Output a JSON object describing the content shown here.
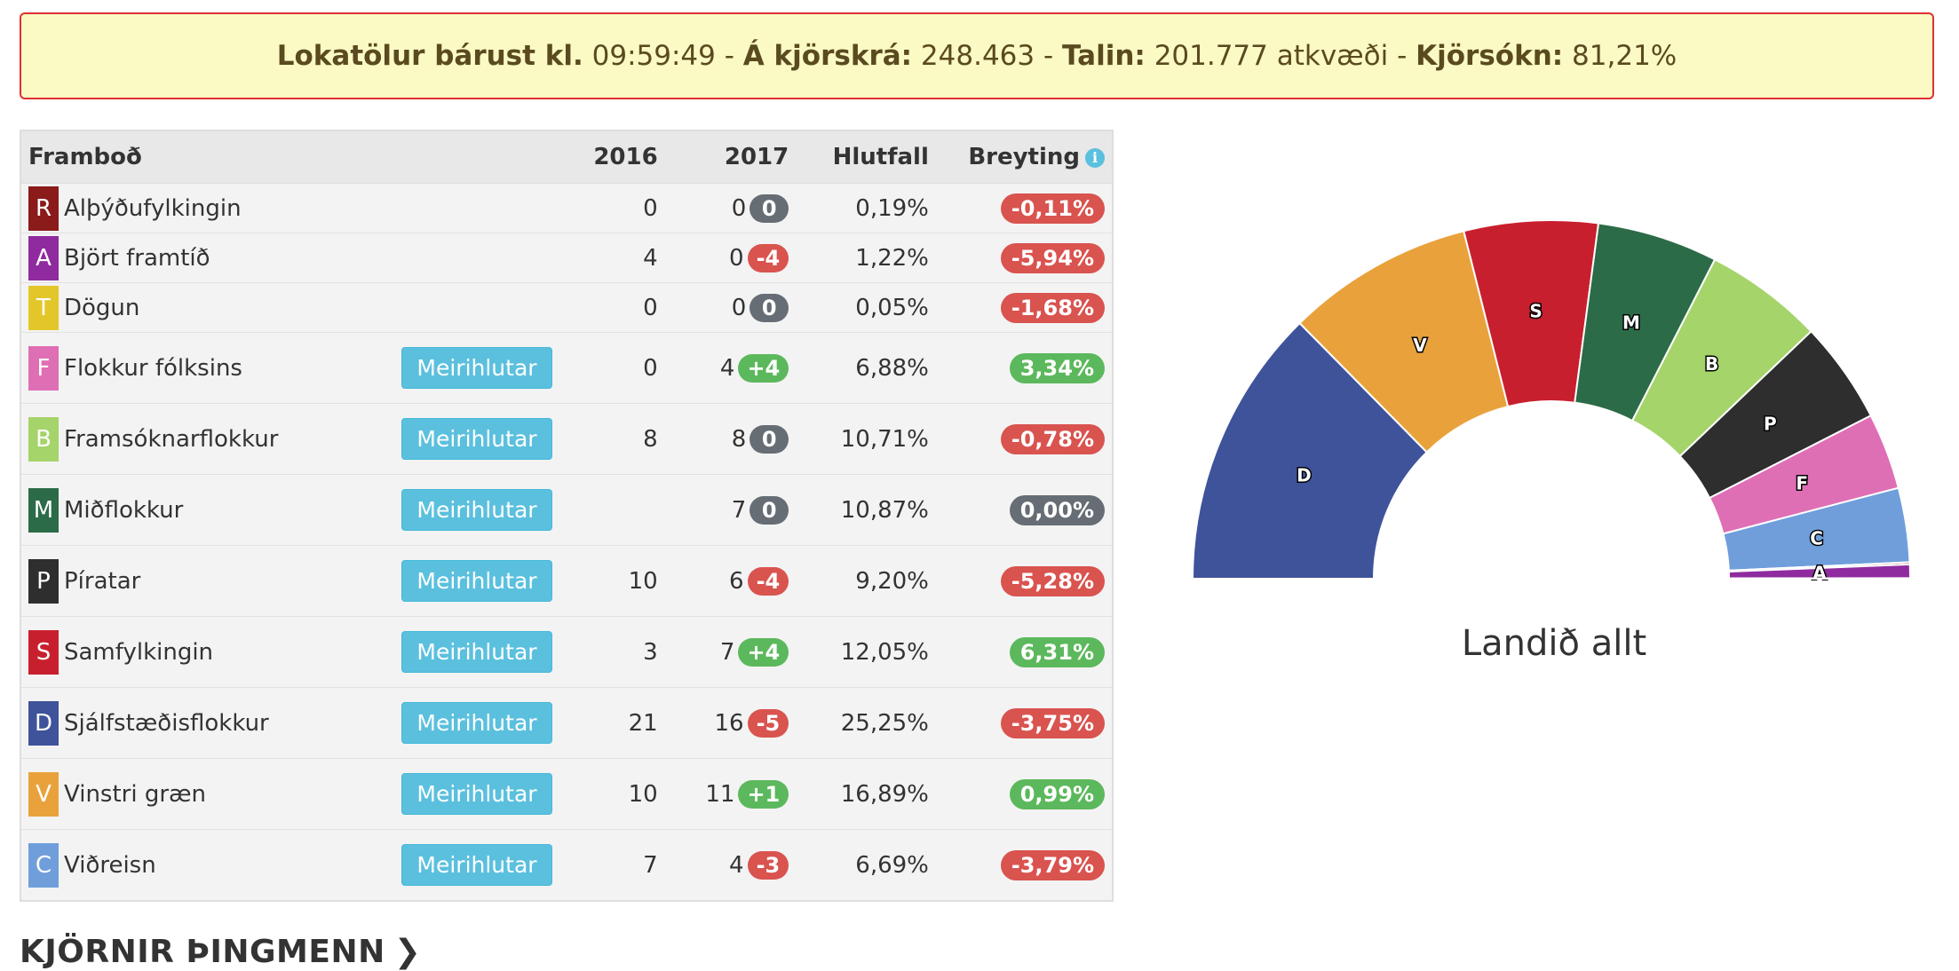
{
  "banner": {
    "received_label": "Lokatölur bárust kl.",
    "time": "09:59:49",
    "registered_label": "Á kjörskrá:",
    "registered": "248.463",
    "counted_label": "Talin:",
    "counted": "201.777 atkvæði",
    "turnout_label": "Kjörsókn:",
    "turnout": "81,21%",
    "sep": "-"
  },
  "table": {
    "headers": {
      "party": "Framboð",
      "y2016": "2016",
      "y2017": "2017",
      "share": "Hlutfall",
      "change": "Breyting"
    },
    "button_label": "Meirihlutar",
    "rows": [
      {
        "letter": "R",
        "name": "Alþýðufylkingin",
        "color": "#8b1a1a",
        "s2016": "0",
        "s2017": "0",
        "diff": "0",
        "diff_color": "#666d74",
        "share": "0,19%",
        "change": "-0,11%",
        "change_color": "#d9534f",
        "button": false
      },
      {
        "letter": "A",
        "name": "Björt framtíð",
        "color": "#8f2b9e",
        "s2016": "4",
        "s2017": "0",
        "diff": "-4",
        "diff_color": "#d9534f",
        "share": "1,22%",
        "change": "-5,94%",
        "change_color": "#d9534f",
        "button": false
      },
      {
        "letter": "T",
        "name": "Dögun",
        "color": "#e3c72a",
        "s2016": "0",
        "s2017": "0",
        "diff": "0",
        "diff_color": "#666d74",
        "share": "0,05%",
        "change": "-1,68%",
        "change_color": "#d9534f",
        "button": false
      },
      {
        "letter": "F",
        "name": "Flokkur fólksins",
        "color": "#df6fb5",
        "s2016": "0",
        "s2017": "4",
        "diff": "+4",
        "diff_color": "#5cb85c",
        "share": "6,88%",
        "change": "3,34%",
        "change_color": "#5cb85c",
        "button": true
      },
      {
        "letter": "B",
        "name": "Framsóknarflokkur",
        "color": "#a5d46a",
        "s2016": "8",
        "s2017": "8",
        "diff": "0",
        "diff_color": "#666d74",
        "share": "10,71%",
        "change": "-0,78%",
        "change_color": "#d9534f",
        "button": true
      },
      {
        "letter": "M",
        "name": "Miðflokkur",
        "color": "#2c6b47",
        "s2016": "",
        "s2017": "7",
        "diff": "0",
        "diff_color": "#666d74",
        "share": "10,87%",
        "change": "0,00%",
        "change_color": "#666d74",
        "button": true
      },
      {
        "letter": "P",
        "name": "Píratar",
        "color": "#2e2e2e",
        "s2016": "10",
        "s2017": "6",
        "diff": "-4",
        "diff_color": "#d9534f",
        "share": "9,20%",
        "change": "-5,28%",
        "change_color": "#d9534f",
        "button": true
      },
      {
        "letter": "S",
        "name": "Samfylkingin",
        "color": "#c81f2e",
        "s2016": "3",
        "s2017": "7",
        "diff": "+4",
        "diff_color": "#5cb85c",
        "share": "12,05%",
        "change": "6,31%",
        "change_color": "#5cb85c",
        "button": true
      },
      {
        "letter": "D",
        "name": "Sjálfstæðisflokkur",
        "color": "#3f539b",
        "s2016": "21",
        "s2017": "16",
        "diff": "-5",
        "diff_color": "#d9534f",
        "share": "25,25%",
        "change": "-3,75%",
        "change_color": "#d9534f",
        "button": true
      },
      {
        "letter": "V",
        "name": "Vinstri græn",
        "color": "#e9a23b",
        "s2016": "10",
        "s2017": "11",
        "diff": "+1",
        "diff_color": "#5cb85c",
        "share": "16,89%",
        "change": "0,99%",
        "change_color": "#5cb85c",
        "button": true
      },
      {
        "letter": "C",
        "name": "Viðreisn",
        "color": "#6f9edb",
        "s2016": "7",
        "s2017": "4",
        "diff": "-3",
        "diff_color": "#d9534f",
        "share": "6,69%",
        "change": "-3,79%",
        "change_color": "#d9534f",
        "button": true
      }
    ]
  },
  "chart_data": {
    "type": "pie",
    "title": "Landið allt",
    "categories": [
      "D",
      "V",
      "S",
      "M",
      "B",
      "P",
      "F",
      "C",
      "R",
      "A",
      "T"
    ],
    "values": [
      25.25,
      16.89,
      12.05,
      10.87,
      10.71,
      9.2,
      6.88,
      6.69,
      0.19,
      1.22,
      0.05
    ],
    "colors": [
      "#3f539b",
      "#e9a23b",
      "#c81f2e",
      "#2c6b47",
      "#a5d46a",
      "#2e2e2e",
      "#df6fb5",
      "#6f9edb",
      "#8b1a1a",
      "#8f2b9e",
      "#e3c72a"
    ],
    "shape": "semicircle-donut"
  },
  "section": {
    "title": "KJÖRNIR ÞINGMENN",
    "chevron": "❯"
  }
}
